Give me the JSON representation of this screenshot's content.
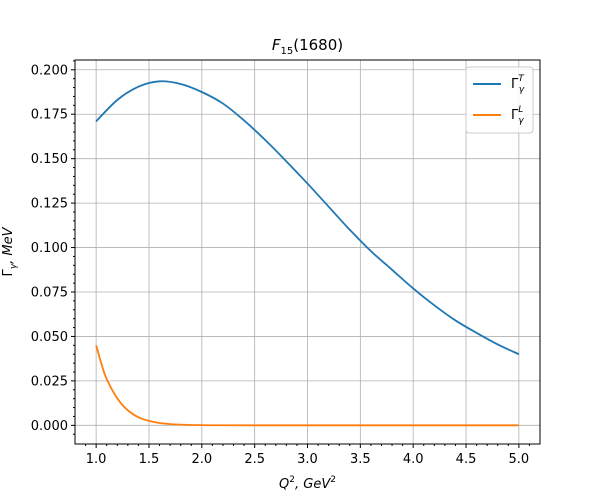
{
  "chart_data": {
    "type": "line",
    "title": {
      "main": "F",
      "sub": "15",
      "rest": "(1680)"
    },
    "xlabel": {
      "base1": "Q",
      "sup1": "2",
      "mid": ", GeV",
      "sup2": "2"
    },
    "ylabel": {
      "base": "Γ",
      "sub": "γ",
      "rest": ", MeV"
    },
    "xlim": [
      0.8,
      5.2
    ],
    "ylim": [
      -0.0105,
      0.2055
    ],
    "xticks": [
      "1.0",
      "1.5",
      "2.0",
      "2.5",
      "3.0",
      "3.5",
      "4.0",
      "4.5",
      "5.0"
    ],
    "yticks": [
      "0.000",
      "0.025",
      "0.050",
      "0.075",
      "0.100",
      "0.125",
      "0.150",
      "0.175",
      "0.200"
    ],
    "grid": true,
    "legend_position": "top-right",
    "series": [
      {
        "name": "Γ_γ^T",
        "label": {
          "base": "Γ",
          "sub": "γ",
          "sup": "T"
        },
        "color": "#1f77b4",
        "x": [
          1.0,
          1.2,
          1.4,
          1.6,
          1.8,
          2.0,
          2.2,
          2.4,
          2.6,
          2.8,
          3.0,
          3.2,
          3.4,
          3.6,
          3.8,
          4.0,
          4.2,
          4.4,
          4.6,
          4.8,
          5.0
        ],
        "y": [
          0.171,
          0.183,
          0.1905,
          0.1935,
          0.192,
          0.1875,
          0.181,
          0.1715,
          0.1605,
          0.1485,
          0.136,
          0.123,
          0.11,
          0.098,
          0.0875,
          0.077,
          0.0675,
          0.059,
          0.052,
          0.0455,
          0.04
        ]
      },
      {
        "name": "Γ_γ^L",
        "label": {
          "base": "Γ",
          "sub": "γ",
          "sup": "L"
        },
        "color": "#ff7f0e",
        "x": [
          1.0,
          1.08,
          1.16,
          1.24,
          1.32,
          1.4,
          1.5,
          1.6,
          1.7,
          1.8,
          2.0,
          2.2,
          2.5,
          3.0,
          4.0,
          5.0
        ],
        "y": [
          0.045,
          0.029,
          0.019,
          0.012,
          0.0075,
          0.0045,
          0.0025,
          0.0013,
          0.0007,
          0.0004,
          0.0001,
          3e-05,
          0.0,
          0.0,
          0.0,
          0.0
        ]
      }
    ]
  }
}
